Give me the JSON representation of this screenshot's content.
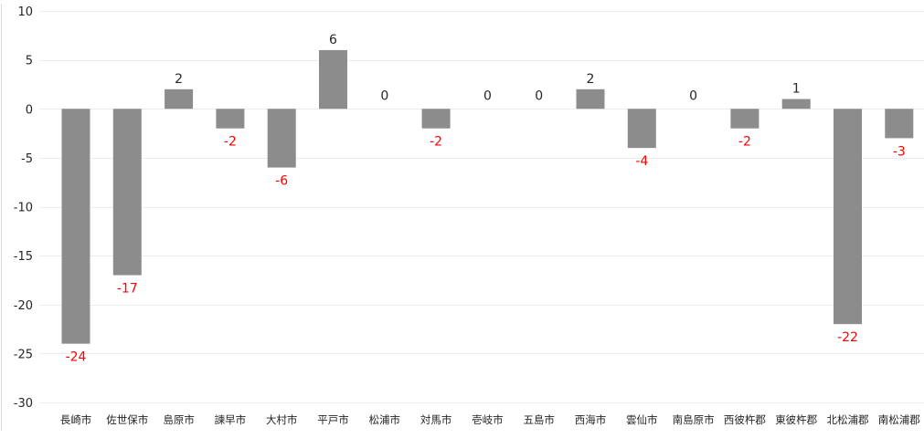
{
  "chart_data": {
    "type": "bar",
    "categories": [
      "長崎市",
      "佐世保市",
      "島原市",
      "諫早市",
      "大村市",
      "平戸市",
      "松浦市",
      "対馬市",
      "壱岐市",
      "五島市",
      "西海市",
      "雲仙市",
      "南島原市",
      "西彼杵郡",
      "東彼杵郡",
      "北松浦郡",
      "南松浦郡"
    ],
    "values": [
      -24,
      -17,
      2,
      -2,
      -6,
      6,
      0,
      -2,
      0,
      0,
      2,
      -4,
      0,
      -2,
      1,
      -22,
      -3
    ],
    "value_labels": [
      "-24",
      "-17",
      "2",
      "-2",
      "-6",
      "6",
      "0",
      "-2",
      "0",
      "0",
      "2",
      "-4",
      "0",
      "-2",
      "1",
      "-22",
      "-3"
    ],
    "ylim": [
      -30,
      10
    ],
    "yticks": [
      -30,
      -25,
      -20,
      -15,
      -10,
      -5,
      0,
      5,
      10
    ],
    "ytick_labels": [
      "-30",
      "-25",
      "-20",
      "-15",
      "-10",
      "-5",
      "0",
      "5",
      "10"
    ],
    "grid": true,
    "legend": "none",
    "title": "",
    "xlabel": "",
    "ylabel": "",
    "colors": {
      "bar": "#8c8c8c",
      "positive_label": "#262626",
      "negative_label": "#ff0000",
      "axis_text": "#262626",
      "gridline": "#ececec",
      "axis_line": "#d9d9d9"
    }
  }
}
